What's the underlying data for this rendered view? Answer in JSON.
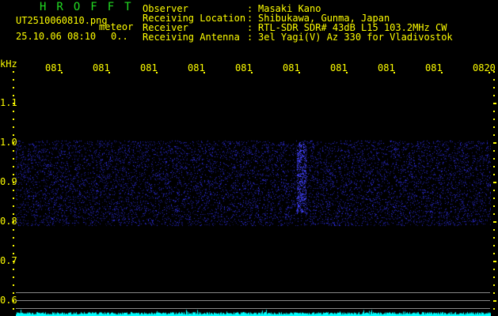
{
  "app": {
    "title": "HROFFT",
    "filename": "UT2510060810.png",
    "mode": "meteor",
    "datetime": "25.10.06 08:10",
    "count": "0.."
  },
  "info": [
    {
      "label": "Observer",
      "value": "Masaki Kano"
    },
    {
      "label": "Receiving Location",
      "value": "Shibukawa, Gunma, Japan"
    },
    {
      "label": "Receiver",
      "value": "RTL-SDR SDR# 43dB L15 103.2MHz CW"
    },
    {
      "label": "Receiving Antenna",
      "value": "3el Yagi(V) Az 330 for Vladivostok"
    }
  ],
  "axis": {
    "y_unit": "kHz",
    "y_ticks": [
      "1.1",
      "1.0",
      "0.9",
      "0.8",
      "0.7",
      "0.6"
    ],
    "x_ticks": [
      "0811",
      "0812",
      "0813",
      "0814",
      "0815",
      "0816",
      "0817",
      "0818",
      "0819",
      "0820"
    ]
  },
  "colors": {
    "text": "#ffff00",
    "title": "#22dd22",
    "signal": "#3333ff",
    "level": "#00ffff",
    "grid": "#888888"
  }
}
